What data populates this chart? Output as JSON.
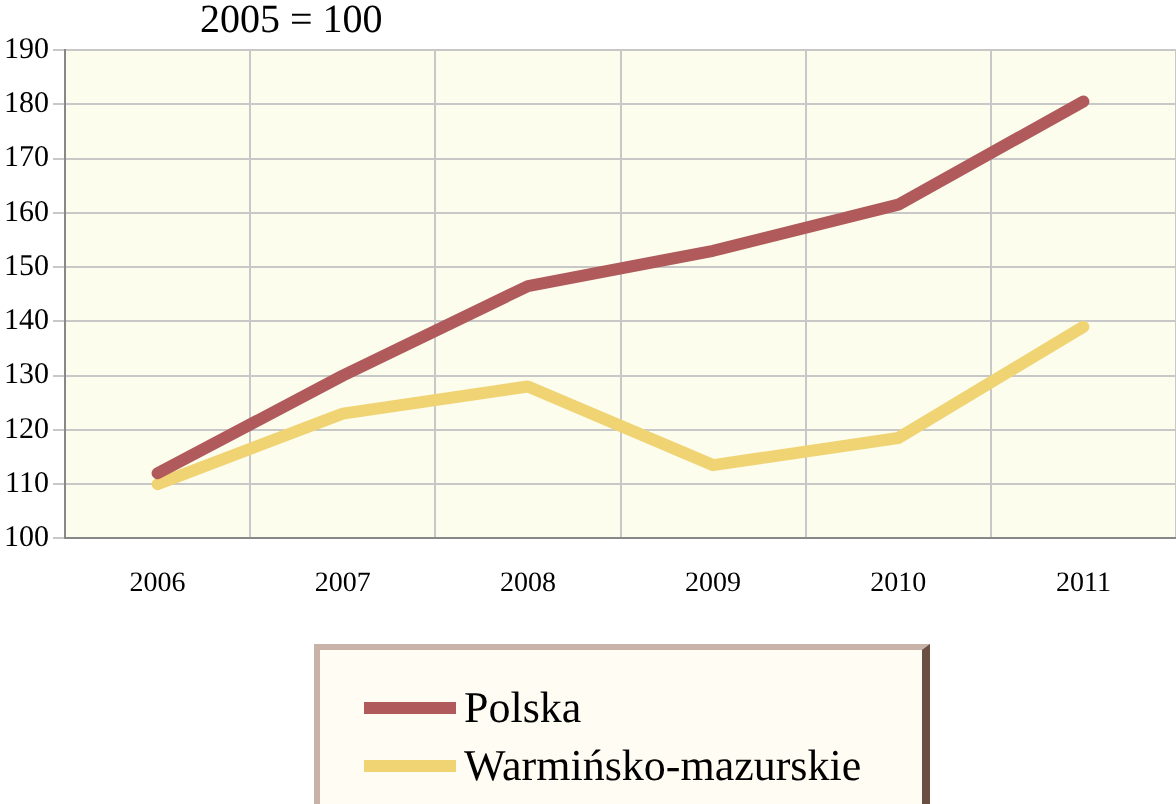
{
  "chart_data": {
    "type": "line",
    "title": "2005 = 100",
    "categories": [
      "2006",
      "2007",
      "2008",
      "2009",
      "2010",
      "2011"
    ],
    "series": [
      {
        "name": "Polska",
        "color": "#b05a5c",
        "values": [
          112,
          130,
          146.5,
          153,
          161.5,
          180.5
        ]
      },
      {
        "name": "Warmińsko-mazurskie",
        "color": "#f0d474",
        "values": [
          110,
          123,
          128,
          113.5,
          118.5,
          139
        ]
      }
    ],
    "ylim": [
      100,
      190
    ],
    "yticks": [
      100,
      110,
      120,
      130,
      140,
      150,
      160,
      170,
      180,
      190
    ],
    "grid": true,
    "legend": "bottom",
    "marker": "none",
    "line_style": "solid"
  }
}
